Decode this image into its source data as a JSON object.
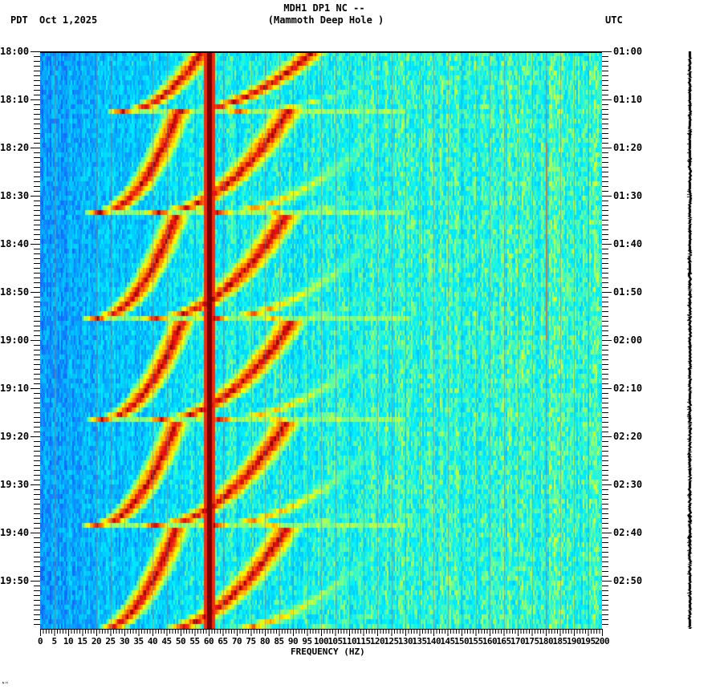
{
  "header": {
    "title_line1": "MDH1 DP1 NC --",
    "title_line2": "(Mammoth Deep Hole )",
    "left_timezone": "PDT",
    "date": "Oct 1,2025",
    "right_timezone": "UTC"
  },
  "footer": {
    "mark": "ᴺᴴ"
  },
  "colors": {
    "background_low": "#1a6cf0",
    "mid": "#00d2ff",
    "yellow": "#ffff00",
    "red": "#e01010",
    "line_60hz": "#7a0000",
    "grid_lines": "#808080",
    "trace": "#000000"
  },
  "chart_data": {
    "type": "heatmap",
    "title": "MDH1 DP1 NC -- (Mammoth Deep Hole )",
    "subtitle": "PDT Oct 1,2025 / UTC",
    "xlabel": "FREQUENCY (HZ)",
    "ylabel_left": "PDT",
    "ylabel_right": "UTC",
    "xlim": [
      0,
      200
    ],
    "x_ticks": [
      0,
      5,
      10,
      15,
      20,
      25,
      30,
      35,
      40,
      45,
      50,
      55,
      60,
      65,
      70,
      75,
      80,
      85,
      90,
      95,
      100,
      105,
      110,
      115,
      120,
      125,
      130,
      135,
      140,
      145,
      150,
      155,
      160,
      165,
      170,
      175,
      180,
      185,
      190,
      195,
      200
    ],
    "y_ticks_left": [
      "18:00",
      "18:10",
      "18:20",
      "18:30",
      "18:40",
      "18:50",
      "19:00",
      "19:10",
      "19:20",
      "19:30",
      "19:40",
      "19:50"
    ],
    "y_ticks_right": [
      "01:00",
      "01:10",
      "01:20",
      "01:30",
      "01:40",
      "01:50",
      "02:00",
      "02:10",
      "02:20",
      "02:30",
      "02:40",
      "02:50"
    ],
    "time_range_minutes": 120,
    "minor_tick_minutes": 1,
    "persistent_lines_hz": [
      {
        "freq": 60,
        "intensity": "max",
        "note": "strong 60 Hz power line"
      },
      {
        "freq": 180,
        "intensity": "moderate",
        "note": "weak line near 180 Hz"
      }
    ],
    "chirp_events": [
      {
        "start_min": 12,
        "end_min": 0,
        "start_hz": 29,
        "note": "rising harmonic arcs"
      },
      {
        "start_min": 33,
        "end_min": 12,
        "start_hz": 21
      },
      {
        "start_min": 55,
        "end_min": 34,
        "start_hz": 20
      },
      {
        "start_min": 76,
        "end_min": 56,
        "start_hz": 22
      },
      {
        "start_min": 98,
        "end_min": 77,
        "start_hz": 20
      },
      {
        "start_min": 120,
        "end_min": 99,
        "start_hz": 20
      }
    ],
    "harmonic_spacing_hz": 22,
    "colormap": [
      "#0050f0",
      "#00b4ff",
      "#00ffff",
      "#80ff80",
      "#ffff00",
      "#ff8000",
      "#ff0000",
      "#800000"
    ]
  }
}
